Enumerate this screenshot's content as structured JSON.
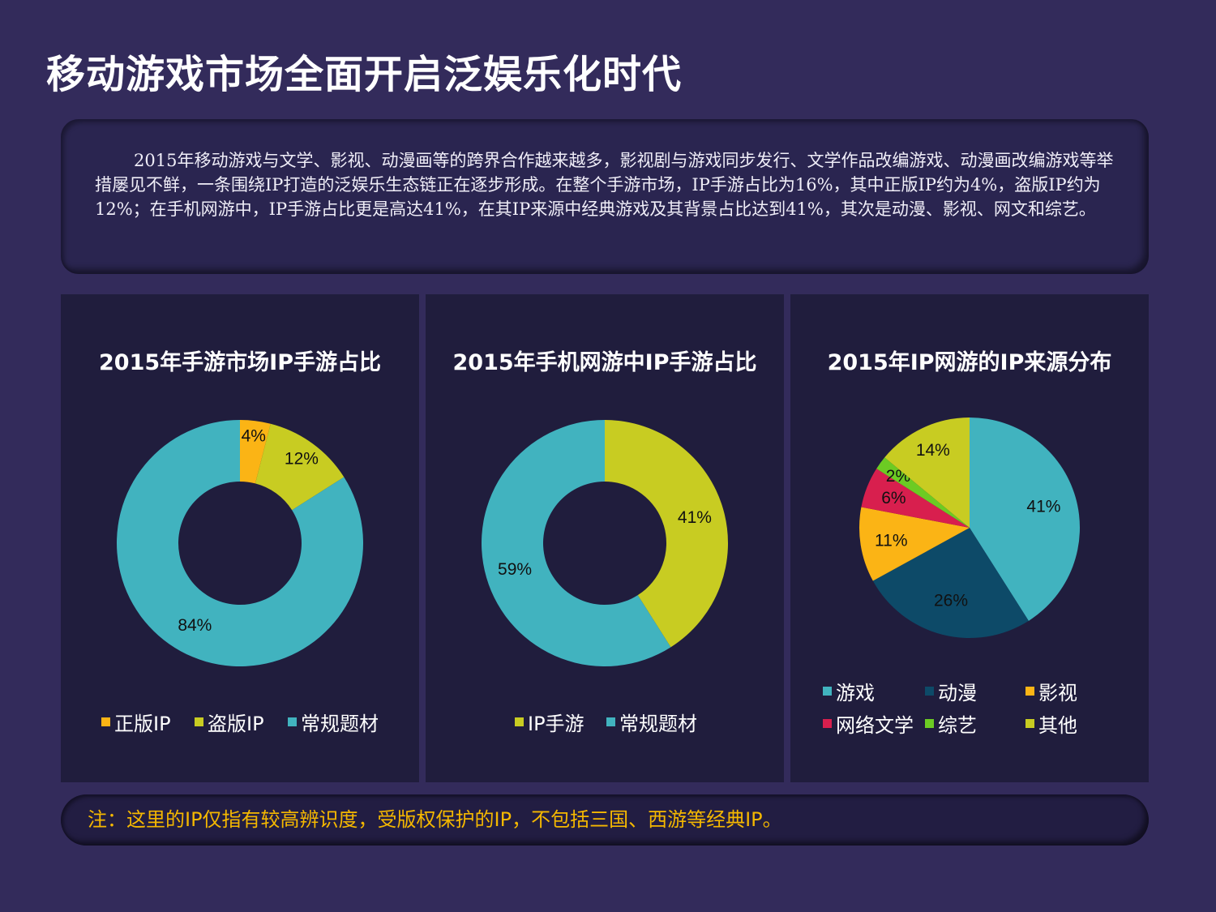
{
  "title": "移动游戏市场全面开启泛娱乐化时代",
  "intro": "2015年移动游戏与文学、影视、动漫画等的跨界合作越来越多，影视剧与游戏同步发行、文学作品改编游戏、动漫画改编游戏等举措屡见不鲜，一条围绕IP打造的泛娱乐生态链正在逐步形成。在整个手游市场，IP手游占比为16%，其中正版IP约为4%，盗版IP约为12%；在手机网游中，IP手游占比更是高达41%，在其IP来源中经典游戏及其背景占比达到41%，其次是动漫、影视、网文和综艺。",
  "note": "注：这里的IP仅指有较高辨识度，受版权保护的IP，不包括三国、西游等经典IP。",
  "chart_data": [
    {
      "type": "pie",
      "variant": "donut",
      "title": "2015年手游市场IP手游占比",
      "categories": [
        "正版IP",
        "盗版IP",
        "常规题材"
      ],
      "values": [
        4,
        12,
        84
      ],
      "labels": [
        "4%",
        "12%",
        "84%"
      ],
      "colors": [
        "#fbb415",
        "#c8cc22",
        "#41b3bf"
      ],
      "legend": "bottom"
    },
    {
      "type": "pie",
      "variant": "donut",
      "title": "2015年手机网游中IP手游占比",
      "categories": [
        "IP手游",
        "常规题材"
      ],
      "values": [
        41,
        59
      ],
      "labels": [
        "41%",
        "59%"
      ],
      "colors": [
        "#c8cc22",
        "#41b3bf"
      ],
      "legend": "bottom"
    },
    {
      "type": "pie",
      "title": "2015年IP网游的IP来源分布",
      "categories": [
        "游戏",
        "动漫",
        "影视",
        "网络文学",
        "综艺",
        "其他"
      ],
      "values": [
        41,
        26,
        11,
        6,
        2,
        14
      ],
      "labels": [
        "41%",
        "26%",
        "11%",
        "6%",
        "2%",
        "14%"
      ],
      "colors": [
        "#41b3bf",
        "#0d4a68",
        "#fbb415",
        "#d81f4e",
        "#6ccb23",
        "#c8cc22"
      ],
      "legend": "bottom"
    }
  ]
}
